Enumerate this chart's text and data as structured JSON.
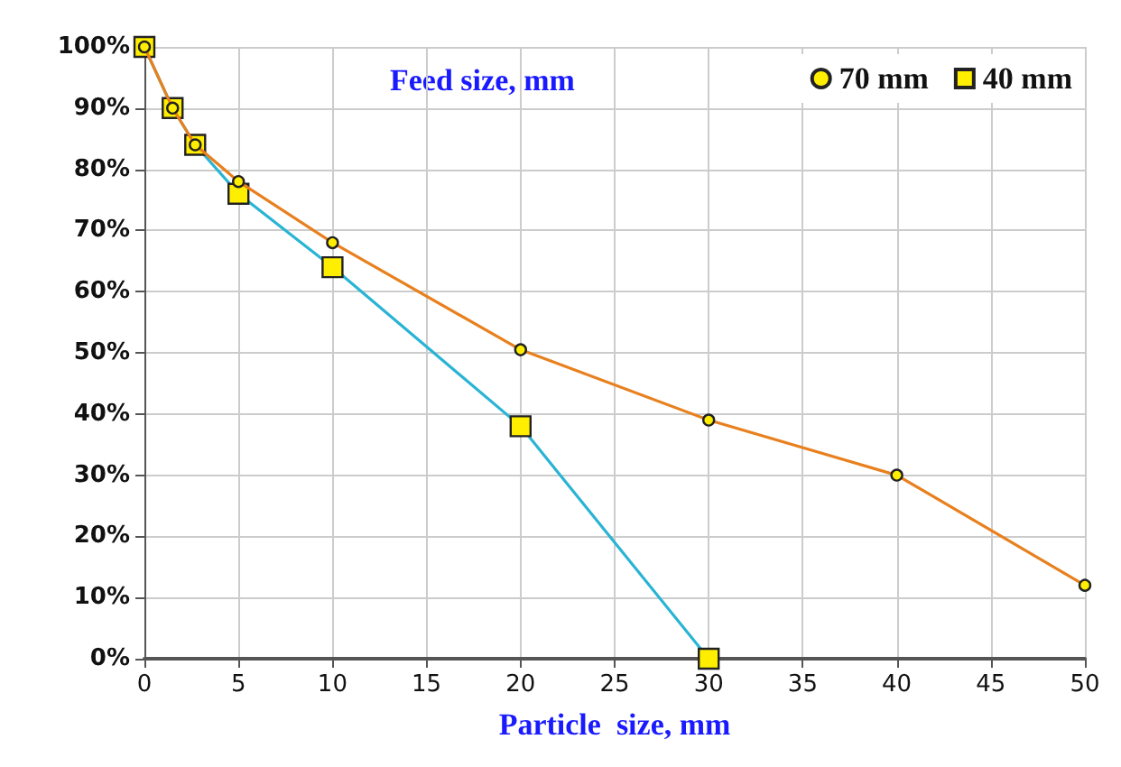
{
  "chart_data": {
    "type": "line",
    "xlabel": "Particle  size, mm",
    "legend_title": "Feed size, mm",
    "xlim": [
      0,
      50
    ],
    "xticks": [
      0,
      5,
      10,
      15,
      20,
      25,
      30,
      35,
      40,
      45,
      50
    ],
    "ylim": [
      0,
      100
    ],
    "yticks": [
      {
        "value": 0,
        "label": "0%"
      },
      {
        "value": 10,
        "label": "10%"
      },
      {
        "value": 20,
        "label": "20%"
      },
      {
        "value": 30,
        "label": "30%"
      },
      {
        "value": 40,
        "label": "40%"
      },
      {
        "value": 50,
        "label": "50%"
      },
      {
        "value": 60,
        "label": "60%"
      },
      {
        "value": 70,
        "label": "70%"
      },
      {
        "value": 80,
        "label": "80%"
      },
      {
        "value": 90,
        "label": "90%"
      },
      {
        "value": 100,
        "label": "100%"
      }
    ],
    "series": [
      {
        "name": "70 mm",
        "color": "#e8801e",
        "marker": "circle",
        "x": [
          0,
          1.5,
          2.7,
          5,
          10,
          20,
          30,
          40,
          50
        ],
        "values": [
          100,
          90,
          84,
          78,
          68,
          50.5,
          39,
          30,
          12
        ]
      },
      {
        "name": "40 mm",
        "color": "#2ab4d4",
        "marker": "square",
        "x": [
          0,
          1.5,
          2.7,
          5,
          10,
          20,
          30
        ],
        "values": [
          100,
          90,
          84,
          76,
          64,
          38,
          0
        ]
      }
    ],
    "grid": true,
    "legend": "top right"
  }
}
